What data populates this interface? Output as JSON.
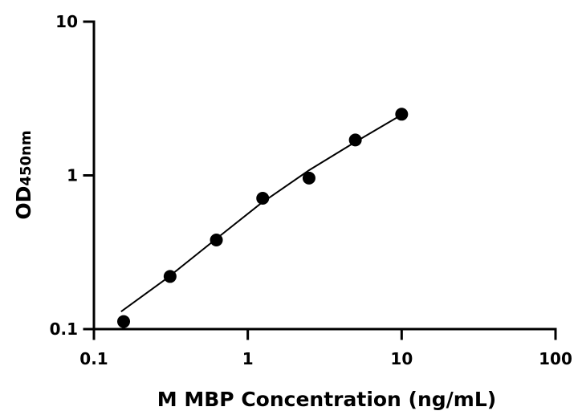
{
  "chart_data": {
    "type": "scatter",
    "xlabel": "M MBP Concentration (ng/mL)",
    "ylabel": {
      "main": "OD",
      "sub": "450nm"
    },
    "xscale": "log",
    "yscale": "log",
    "xlim": [
      0.1,
      100
    ],
    "ylim": [
      0.1,
      10
    ],
    "x_ticks": [
      0.1,
      1,
      10,
      100
    ],
    "x_tick_labels": [
      "0.1",
      "1",
      "10",
      "100"
    ],
    "y_ticks": [
      0.1,
      1,
      10
    ],
    "y_tick_labels": [
      "0.1",
      "1",
      "10"
    ],
    "grid": false,
    "series": [
      {
        "points": [
          {
            "x": 0.156,
            "y": 0.112
          },
          {
            "x": 0.3125,
            "y": 0.22
          },
          {
            "x": 0.625,
            "y": 0.38
          },
          {
            "x": 1.25,
            "y": 0.71
          },
          {
            "x": 2.5,
            "y": 0.96
          },
          {
            "x": 5,
            "y": 1.7
          },
          {
            "x": 10,
            "y": 2.5
          }
        ],
        "marker_color": "#000000"
      }
    ],
    "fit_curve": {
      "points": [
        {
          "x": 0.15,
          "y": 0.13
        },
        {
          "x": 0.3,
          "y": 0.215
        },
        {
          "x": 0.6,
          "y": 0.375
        },
        {
          "x": 1.2,
          "y": 0.65
        },
        {
          "x": 2.5,
          "y": 1.08
        },
        {
          "x": 5,
          "y": 1.65
        },
        {
          "x": 10,
          "y": 2.48
        }
      ],
      "color": "#000000"
    }
  }
}
